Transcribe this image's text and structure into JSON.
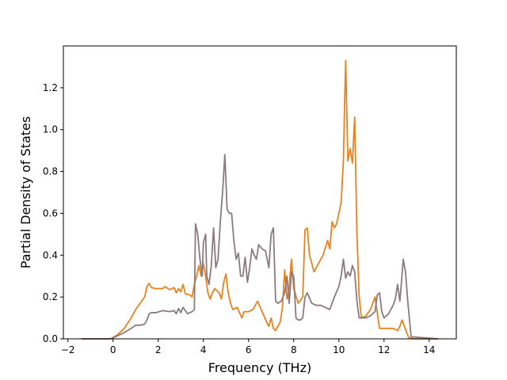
{
  "chart_data": {
    "type": "line",
    "xlabel": "Frequency (THz)",
    "ylabel": "Partial Density of States",
    "xlim": [
      -2.2,
      15.2
    ],
    "ylim": [
      0,
      1.4
    ],
    "xticks": [
      -2,
      0,
      2,
      4,
      6,
      8,
      10,
      12,
      14
    ],
    "xtick_labels": [
      "−2",
      "0",
      "2",
      "4",
      "6",
      "8",
      "10",
      "12",
      "14"
    ],
    "yticks": [
      0.0,
      0.2,
      0.4,
      0.6,
      0.8,
      1.0,
      1.2
    ],
    "ytick_labels": [
      "0.0",
      "0.2",
      "0.4",
      "0.6",
      "0.8",
      "1.0",
      "1.2"
    ],
    "grid": false,
    "series": [
      {
        "color": "#e8821f",
        "x": [
          -1.4,
          -0.1,
          0.2,
          0.5,
          0.8,
          1.0,
          1.2,
          1.4,
          1.5,
          1.6,
          1.7,
          1.9,
          2.2,
          2.3,
          2.5,
          2.7,
          2.8,
          2.9,
          3.0,
          3.1,
          3.2,
          3.4,
          3.5,
          3.6,
          3.7,
          3.8,
          3.9,
          4.0,
          4.1,
          4.2,
          4.3,
          4.4,
          4.5,
          4.6,
          4.7,
          4.8,
          4.9,
          5.0,
          5.1,
          5.2,
          5.3,
          5.5,
          5.7,
          5.8,
          6.0,
          6.2,
          6.4,
          6.6,
          6.8,
          6.9,
          7.0,
          7.1,
          7.2,
          7.4,
          7.5,
          7.6,
          7.7,
          7.8,
          7.9,
          8.0,
          8.2,
          8.4,
          8.5,
          8.6,
          8.7,
          8.9,
          9.1,
          9.3,
          9.5,
          9.6,
          9.7,
          9.8,
          9.9,
          10.0,
          10.1,
          10.2,
          10.25,
          10.3,
          10.4,
          10.5,
          10.6,
          10.7,
          10.8,
          10.9,
          11.0,
          11.2,
          11.4,
          11.6,
          11.8,
          12.0,
          12.2,
          12.4,
          12.6,
          12.7,
          12.8,
          12.9,
          13.0,
          13.1,
          13.3,
          14.4
        ],
        "y": [
          0.0,
          0.0,
          0.02,
          0.05,
          0.1,
          0.14,
          0.17,
          0.2,
          0.25,
          0.265,
          0.245,
          0.24,
          0.24,
          0.25,
          0.235,
          0.245,
          0.22,
          0.24,
          0.225,
          0.26,
          0.215,
          0.21,
          0.2,
          0.26,
          0.3,
          0.35,
          0.3,
          0.36,
          0.3,
          0.22,
          0.19,
          0.22,
          0.24,
          0.23,
          0.22,
          0.19,
          0.27,
          0.31,
          0.22,
          0.17,
          0.14,
          0.15,
          0.1,
          0.13,
          0.13,
          0.14,
          0.18,
          0.13,
          0.08,
          0.06,
          0.1,
          0.05,
          0.04,
          0.08,
          0.15,
          0.33,
          0.19,
          0.25,
          0.38,
          0.24,
          0.17,
          0.2,
          0.52,
          0.53,
          0.4,
          0.32,
          0.36,
          0.4,
          0.47,
          0.43,
          0.56,
          0.53,
          0.55,
          0.6,
          0.65,
          0.85,
          1.1,
          1.33,
          0.85,
          0.91,
          0.84,
          1.06,
          0.5,
          0.2,
          0.1,
          0.11,
          0.14,
          0.2,
          0.05,
          0.05,
          0.05,
          0.05,
          0.04,
          0.06,
          0.09,
          0.06,
          0.03,
          0.005,
          0.0,
          0.0
        ]
      },
      {
        "color": "#8c7a7f",
        "x": [
          -1.4,
          -0.1,
          0.2,
          0.5,
          0.8,
          1.0,
          1.2,
          1.4,
          1.5,
          1.6,
          1.7,
          1.9,
          2.2,
          2.5,
          2.7,
          2.8,
          2.9,
          3.0,
          3.1,
          3.3,
          3.5,
          3.6,
          3.65,
          3.75,
          3.85,
          3.95,
          4.0,
          4.1,
          4.15,
          4.25,
          4.35,
          4.45,
          4.55,
          4.65,
          4.75,
          4.85,
          4.95,
          5.05,
          5.15,
          5.25,
          5.35,
          5.45,
          5.55,
          5.65,
          5.75,
          5.85,
          5.95,
          6.05,
          6.15,
          6.25,
          6.35,
          6.45,
          6.6,
          6.75,
          6.9,
          7.0,
          7.1,
          7.2,
          7.3,
          7.45,
          7.6,
          7.7,
          7.8,
          7.9,
          8.0,
          8.1,
          8.2,
          8.3,
          8.4,
          8.5,
          8.6,
          8.8,
          9.0,
          9.2,
          9.4,
          9.6,
          9.8,
          10.0,
          10.1,
          10.2,
          10.3,
          10.4,
          10.5,
          10.6,
          10.7,
          10.8,
          10.9,
          11.0,
          11.2,
          11.4,
          11.6,
          11.7,
          11.8,
          11.9,
          12.0,
          12.2,
          12.4,
          12.5,
          12.6,
          12.7,
          12.75,
          12.85,
          12.95,
          13.05,
          13.2,
          14.4
        ],
        "y": [
          0.0,
          0.0,
          0.015,
          0.03,
          0.05,
          0.065,
          0.065,
          0.07,
          0.09,
          0.12,
          0.125,
          0.125,
          0.135,
          0.13,
          0.135,
          0.12,
          0.145,
          0.125,
          0.15,
          0.12,
          0.13,
          0.14,
          0.55,
          0.5,
          0.38,
          0.3,
          0.46,
          0.5,
          0.3,
          0.26,
          0.35,
          0.53,
          0.34,
          0.38,
          0.56,
          0.7,
          0.88,
          0.62,
          0.6,
          0.6,
          0.47,
          0.38,
          0.41,
          0.3,
          0.3,
          0.39,
          0.27,
          0.34,
          0.43,
          0.4,
          0.38,
          0.45,
          0.43,
          0.42,
          0.34,
          0.5,
          0.53,
          0.18,
          0.17,
          0.18,
          0.22,
          0.3,
          0.17,
          0.32,
          0.3,
          0.1,
          0.09,
          0.09,
          0.1,
          0.2,
          0.22,
          0.17,
          0.16,
          0.16,
          0.15,
          0.14,
          0.2,
          0.25,
          0.3,
          0.38,
          0.29,
          0.32,
          0.3,
          0.35,
          0.32,
          0.18,
          0.1,
          0.1,
          0.1,
          0.11,
          0.13,
          0.21,
          0.22,
          0.13,
          0.1,
          0.12,
          0.16,
          0.19,
          0.26,
          0.18,
          0.24,
          0.38,
          0.32,
          0.18,
          0.01,
          0.0
        ]
      }
    ]
  }
}
